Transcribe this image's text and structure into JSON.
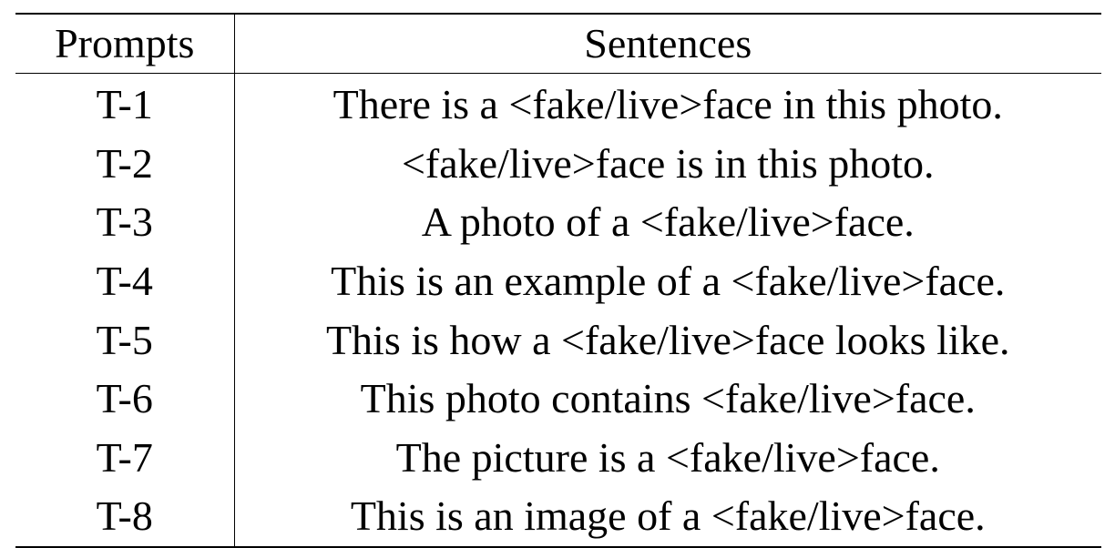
{
  "table": {
    "headers": {
      "prompts": "Prompts",
      "sentences": "Sentences"
    },
    "rows": [
      {
        "prompt": "T-1",
        "sentence": "There is a <fake/live>face in this photo."
      },
      {
        "prompt": "T-2",
        "sentence": "<fake/live>face is in this photo."
      },
      {
        "prompt": "T-3",
        "sentence": "A photo of a <fake/live>face."
      },
      {
        "prompt": "T-4",
        "sentence": "This is an example of a <fake/live>face."
      },
      {
        "prompt": "T-5",
        "sentence": "This is how a <fake/live>face looks like."
      },
      {
        "prompt": "T-6",
        "sentence": "This photo contains <fake/live>face."
      },
      {
        "prompt": "T-7",
        "sentence": "The picture is a <fake/live>face."
      },
      {
        "prompt": "T-8",
        "sentence": "This is an image of a <fake/live>face."
      }
    ]
  }
}
